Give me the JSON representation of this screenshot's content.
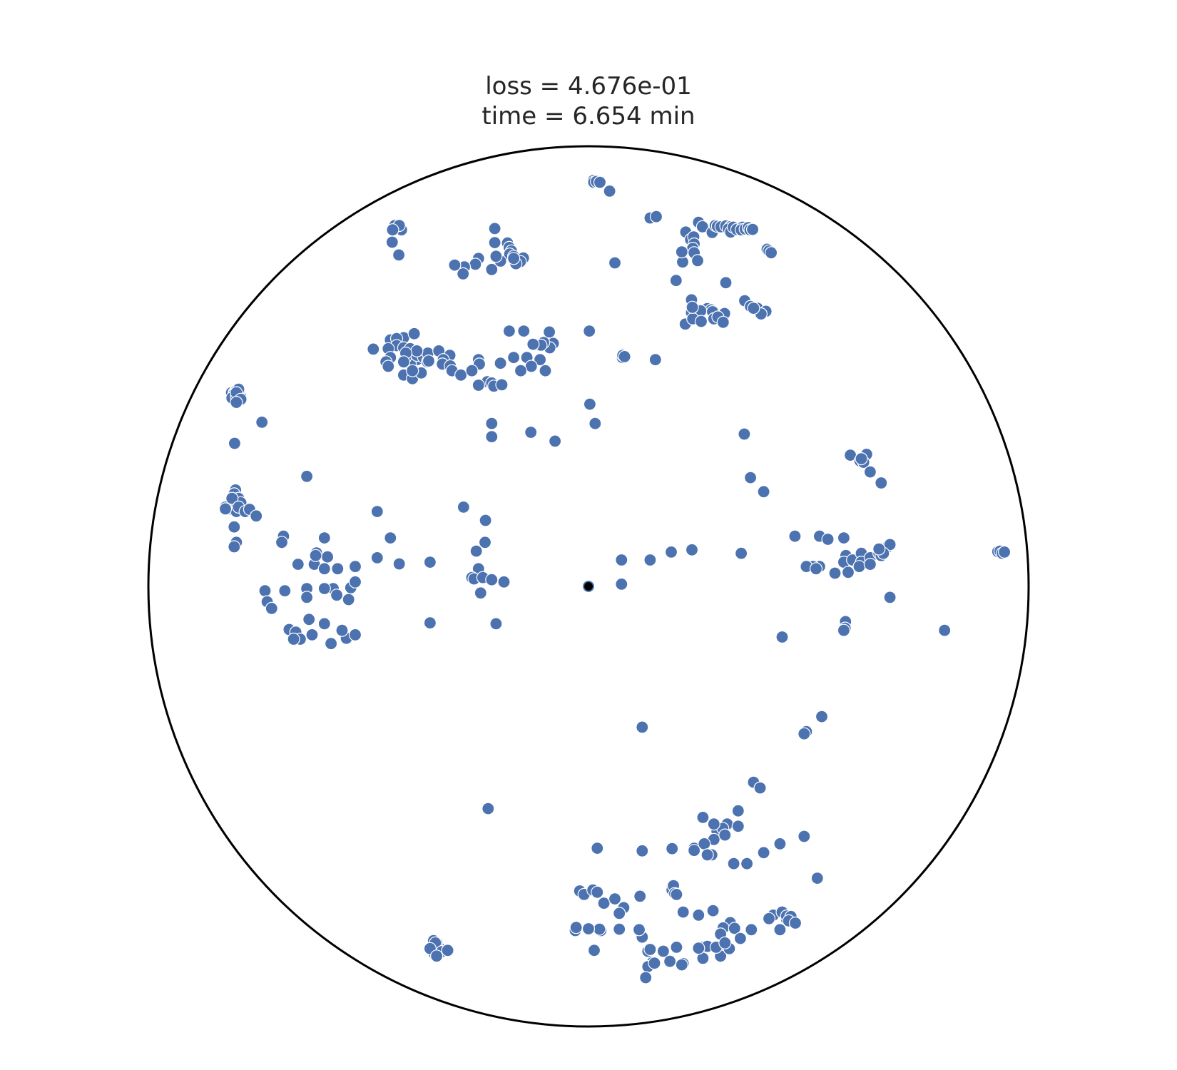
{
  "chart_data": {
    "type": "scatter",
    "title_lines": [
      "loss = 4.676e-01",
      "time = 6.654 min"
    ],
    "xlim": [
      -1,
      1
    ],
    "ylim": [
      -1,
      1
    ],
    "grid": false,
    "boundary": "unit-circle",
    "marker_color": "#4c72b0",
    "marker_edge_color": "#ffffff",
    "origin_color": "#000000",
    "boundary_color": "#000000",
    "origin": [
      0,
      0
    ],
    "points": [
      [
        0.011,
        0.922
      ],
      [
        0.012,
        0.918
      ],
      [
        0.018,
        0.92
      ],
      [
        0.026,
        0.918
      ],
      [
        0.048,
        0.898
      ],
      [
        0.14,
        0.837
      ],
      [
        0.154,
        0.84
      ],
      [
        0.25,
        0.827
      ],
      [
        0.259,
        0.817
      ],
      [
        0.281,
        0.804
      ],
      [
        0.288,
        0.82
      ],
      [
        0.293,
        0.818
      ],
      [
        0.301,
        0.817
      ],
      [
        0.312,
        0.819
      ],
      [
        0.322,
        0.817
      ],
      [
        0.318,
        0.812
      ],
      [
        0.323,
        0.805
      ],
      [
        0.329,
        0.816
      ],
      [
        0.337,
        0.811
      ],
      [
        0.35,
        0.816
      ],
      [
        0.347,
        0.81
      ],
      [
        0.356,
        0.812
      ],
      [
        0.363,
        0.815
      ],
      [
        0.367,
        0.81
      ],
      [
        0.373,
        0.811
      ],
      [
        0.221,
        0.805
      ],
      [
        0.232,
        0.788
      ],
      [
        0.239,
        0.794
      ],
      [
        0.24,
        0.778
      ],
      [
        0.237,
        0.768
      ],
      [
        0.24,
        0.758
      ],
      [
        0.248,
        0.74
      ],
      [
        0.214,
        0.737
      ],
      [
        0.212,
        0.76
      ],
      [
        0.199,
        0.695
      ],
      [
        0.234,
        0.651
      ],
      [
        0.27,
        0.631
      ],
      [
        0.279,
        0.628
      ],
      [
        0.234,
        0.622
      ],
      [
        0.255,
        0.626
      ],
      [
        0.282,
        0.624
      ],
      [
        0.309,
        0.62
      ],
      [
        0.285,
        0.608
      ],
      [
        0.22,
        0.596
      ],
      [
        0.237,
        0.608
      ],
      [
        0.256,
        0.602
      ],
      [
        0.294,
        0.612
      ],
      [
        0.306,
        0.6
      ],
      [
        0.406,
        0.766
      ],
      [
        0.41,
        0.762
      ],
      [
        0.415,
        0.758
      ],
      [
        -0.44,
        0.82
      ],
      [
        -0.43,
        0.815
      ],
      [
        -0.425,
        0.81
      ],
      [
        -0.43,
        0.82
      ],
      [
        -0.445,
        0.81
      ],
      [
        -0.446,
        0.782
      ],
      [
        -0.431,
        0.753
      ],
      [
        -0.213,
        0.813
      ],
      [
        -0.213,
        0.781
      ],
      [
        -0.184,
        0.78
      ],
      [
        -0.18,
        0.77
      ],
      [
        -0.175,
        0.762
      ],
      [
        -0.179,
        0.755
      ],
      [
        -0.17,
        0.75
      ],
      [
        -0.16,
        0.74
      ],
      [
        -0.148,
        0.746
      ],
      [
        -0.155,
        0.738
      ],
      [
        -0.165,
        0.733
      ],
      [
        -0.17,
        0.745
      ],
      [
        -0.2,
        0.739
      ],
      [
        -0.22,
        0.72
      ],
      [
        -0.25,
        0.745
      ],
      [
        -0.257,
        0.732
      ],
      [
        -0.282,
        0.726
      ],
      [
        -0.285,
        0.71
      ],
      [
        -0.304,
        0.73
      ],
      [
        -0.21,
        0.75
      ],
      [
        -0.18,
        0.58
      ],
      [
        -0.147,
        0.58
      ],
      [
        -0.089,
        0.578
      ],
      [
        -0.08,
        0.552
      ],
      [
        -0.088,
        0.542
      ],
      [
        -0.102,
        0.554
      ],
      [
        0.06,
        0.735
      ],
      [
        0.002,
        0.58
      ],
      [
        -0.489,
        0.539
      ],
      [
        -0.45,
        0.56
      ],
      [
        -0.42,
        0.565
      ],
      [
        -0.396,
        0.574
      ],
      [
        -0.436,
        0.563
      ],
      [
        -0.436,
        0.547
      ],
      [
        -0.455,
        0.54
      ],
      [
        -0.42,
        0.542
      ],
      [
        -0.405,
        0.54
      ],
      [
        -0.39,
        0.515
      ],
      [
        -0.405,
        0.505
      ],
      [
        -0.416,
        0.52
      ],
      [
        -0.39,
        0.525
      ],
      [
        -0.375,
        0.521
      ],
      [
        -0.366,
        0.51
      ],
      [
        -0.365,
        0.53
      ],
      [
        -0.363,
        0.512
      ],
      [
        -0.39,
        0.535
      ],
      [
        -0.34,
        0.535
      ],
      [
        -0.315,
        0.525
      ],
      [
        -0.33,
        0.515
      ],
      [
        -0.415,
        0.53
      ],
      [
        -0.42,
        0.51
      ],
      [
        -0.45,
        0.52
      ],
      [
        -0.46,
        0.51
      ],
      [
        -0.455,
        0.5
      ],
      [
        -0.42,
        0.48
      ],
      [
        -0.4,
        0.472
      ],
      [
        -0.38,
        0.485
      ],
      [
        -0.4,
        0.49
      ],
      [
        -0.332,
        0.505
      ],
      [
        -0.314,
        0.501
      ],
      [
        -0.31,
        0.49
      ],
      [
        -0.29,
        0.48
      ],
      [
        -0.25,
        0.515
      ],
      [
        -0.248,
        0.505
      ],
      [
        -0.265,
        0.49
      ],
      [
        -0.23,
        0.465
      ],
      [
        -0.2,
        0.507
      ],
      [
        -0.22,
        0.462
      ],
      [
        -0.215,
        0.455
      ],
      [
        -0.25,
        0.457
      ],
      [
        -0.14,
        0.52
      ],
      [
        -0.17,
        0.52
      ],
      [
        -0.11,
        0.515
      ],
      [
        -0.108,
        0.548
      ],
      [
        -0.126,
        0.55
      ],
      [
        -0.13,
        0.5
      ],
      [
        -0.098,
        0.49
      ],
      [
        -0.154,
        0.49
      ],
      [
        -0.197,
        0.458
      ],
      [
        -0.22,
        0.34
      ],
      [
        -0.22,
        0.37
      ],
      [
        0.077,
        0.52
      ],
      [
        0.078,
        0.525
      ],
      [
        0.082,
        0.522
      ],
      [
        0.152,
        0.515
      ],
      [
        -0.131,
        0.35
      ],
      [
        -0.076,
        0.33
      ],
      [
        0.003,
        0.414
      ],
      [
        0.015,
        0.37
      ],
      [
        0.355,
        0.649
      ],
      [
        0.368,
        0.636
      ],
      [
        0.384,
        0.632
      ],
      [
        0.403,
        0.625
      ],
      [
        0.392,
        0.619
      ],
      [
        0.375,
        0.632
      ],
      [
        0.312,
        0.69
      ],
      [
        0.236,
        0.634
      ],
      [
        0.354,
        0.346
      ],
      [
        0.368,
        0.247
      ],
      [
        0.398,
        0.215
      ],
      [
        0.0,
        0.0
      ],
      [
        -0.811,
        0.44
      ],
      [
        -0.805,
        0.44
      ],
      [
        -0.8,
        0.438
      ],
      [
        -0.8,
        0.445
      ],
      [
        -0.805,
        0.437
      ],
      [
        -0.81,
        0.428
      ],
      [
        -0.8,
        0.43
      ],
      [
        -0.79,
        0.43
      ],
      [
        -0.793,
        0.447
      ],
      [
        -0.795,
        0.448
      ],
      [
        -0.8,
        0.44
      ],
      [
        -0.79,
        0.425
      ],
      [
        -0.8,
        0.418
      ],
      [
        -0.742,
        0.373
      ],
      [
        -0.804,
        0.325
      ],
      [
        -0.802,
        0.219
      ],
      [
        -0.805,
        0.21
      ],
      [
        -0.81,
        0.195
      ],
      [
        -0.795,
        0.2
      ],
      [
        -0.79,
        0.19
      ],
      [
        -0.81,
        0.175
      ],
      [
        -0.8,
        0.17
      ],
      [
        -0.825,
        0.18
      ],
      [
        -0.825,
        0.176
      ],
      [
        -0.81,
        0.2
      ],
      [
        -0.795,
        0.18
      ],
      [
        -0.78,
        0.17
      ],
      [
        -0.77,
        0.175
      ],
      [
        -0.755,
        0.16
      ],
      [
        -0.805,
        0.135
      ],
      [
        -0.8,
        0.1
      ],
      [
        -0.805,
        0.09
      ],
      [
        -0.64,
        0.25
      ],
      [
        -0.6,
        0.11
      ],
      [
        -0.693,
        0.114
      ],
      [
        -0.697,
        0.1
      ],
      [
        -0.618,
        0.076
      ],
      [
        -0.623,
        0.05
      ],
      [
        -0.593,
        0.067
      ],
      [
        -0.66,
        0.05
      ],
      [
        -0.69,
        -0.01
      ],
      [
        -0.64,
        -0.005
      ],
      [
        -0.58,
        -0.005
      ],
      [
        -0.64,
        -0.025
      ],
      [
        -0.6,
        -0.005
      ],
      [
        -0.572,
        -0.02
      ],
      [
        -0.54,
        -0.003
      ],
      [
        -0.57,
        0.04
      ],
      [
        -0.6,
        0.04
      ],
      [
        -0.62,
        0.07
      ],
      [
        -0.53,
        0.045
      ],
      [
        -0.53,
        0.01
      ],
      [
        -0.735,
        -0.01
      ],
      [
        -0.73,
        -0.035
      ],
      [
        -0.72,
        -0.05
      ],
      [
        -0.68,
        -0.098
      ],
      [
        -0.665,
        -0.104
      ],
      [
        -0.655,
        -0.12
      ],
      [
        -0.67,
        -0.12
      ],
      [
        -0.628,
        -0.11
      ],
      [
        -0.585,
        -0.13
      ],
      [
        -0.55,
        -0.118
      ],
      [
        -0.56,
        -0.1
      ],
      [
        -0.53,
        -0.11
      ],
      [
        -0.6,
        -0.085
      ],
      [
        -0.635,
        -0.075
      ],
      [
        -0.545,
        -0.03
      ],
      [
        -0.48,
        0.065
      ],
      [
        -0.48,
        0.17
      ],
      [
        -0.45,
        0.11
      ],
      [
        -0.43,
        0.051
      ],
      [
        -0.36,
        0.055
      ],
      [
        -0.284,
        0.18
      ],
      [
        -0.234,
        0.15
      ],
      [
        -0.235,
        0.1
      ],
      [
        -0.255,
        0.08
      ],
      [
        -0.25,
        0.04
      ],
      [
        -0.265,
        0.02
      ],
      [
        -0.26,
        0.017
      ],
      [
        -0.24,
        0.02
      ],
      [
        -0.22,
        0.015
      ],
      [
        -0.192,
        0.01
      ],
      [
        -0.245,
        -0.015
      ],
      [
        -0.36,
        -0.083
      ],
      [
        -0.21,
        -0.085
      ],
      [
        0.075,
        0.06
      ],
      [
        0.075,
        0.005
      ],
      [
        0.14,
        0.06
      ],
      [
        0.188,
        0.078
      ],
      [
        0.235,
        0.083
      ],
      [
        0.347,
        0.075
      ],
      [
        0.469,
        0.114
      ],
      [
        0.525,
        0.114
      ],
      [
        0.544,
        0.107
      ],
      [
        0.58,
        0.11
      ],
      [
        0.585,
        0.07
      ],
      [
        0.58,
        0.055
      ],
      [
        0.6,
        0.06
      ],
      [
        0.62,
        0.075
      ],
      [
        0.62,
        0.055
      ],
      [
        0.615,
        0.045
      ],
      [
        0.64,
        0.065
      ],
      [
        0.64,
        0.05
      ],
      [
        0.66,
        0.075
      ],
      [
        0.665,
        0.07
      ],
      [
        0.68,
        0.09
      ],
      [
        0.685,
        0.095
      ],
      [
        0.67,
        0.075
      ],
      [
        0.66,
        0.085
      ],
      [
        0.59,
        0.032
      ],
      [
        0.56,
        0.03
      ],
      [
        0.525,
        0.045
      ],
      [
        0.51,
        0.045
      ],
      [
        0.495,
        0.045
      ],
      [
        0.517,
        0.04
      ],
      [
        0.685,
        -0.025
      ],
      [
        0.44,
        -0.115
      ],
      [
        0.584,
        -0.08
      ],
      [
        0.583,
        -0.095
      ],
      [
        0.58,
        -0.1
      ],
      [
        0.632,
        0.3
      ],
      [
        0.595,
        0.298
      ],
      [
        0.617,
        0.285
      ],
      [
        0.625,
        0.282
      ],
      [
        0.62,
        0.29
      ],
      [
        0.665,
        0.235
      ],
      [
        0.64,
        0.26
      ],
      [
        0.93,
        0.079
      ],
      [
        0.935,
        0.08
      ],
      [
        0.94,
        0.075
      ],
      [
        0.945,
        0.078
      ],
      [
        0.809,
        -0.1
      ],
      [
        0.122,
        -0.32
      ],
      [
        0.495,
        -0.33
      ],
      [
        0.49,
        -0.335
      ],
      [
        0.53,
        -0.296
      ],
      [
        -0.228,
        -0.505
      ],
      [
        0.375,
        -0.445
      ],
      [
        0.39,
        -0.458
      ],
      [
        0.34,
        -0.51
      ],
      [
        0.315,
        -0.54
      ],
      [
        0.292,
        -0.556
      ],
      [
        0.34,
        -0.545
      ],
      [
        0.305,
        -0.55
      ],
      [
        0.285,
        -0.54
      ],
      [
        0.26,
        -0.525
      ],
      [
        0.285,
        -0.575
      ],
      [
        0.31,
        -0.565
      ],
      [
        0.24,
        -0.595
      ],
      [
        0.263,
        -0.585
      ],
      [
        0.24,
        -0.6
      ],
      [
        0.19,
        -0.596
      ],
      [
        0.122,
        -0.601
      ],
      [
        0.02,
        -0.595
      ],
      [
        0.36,
        -0.63
      ],
      [
        0.33,
        -0.63
      ],
      [
        0.28,
        -0.61
      ],
      [
        0.27,
        -0.61
      ],
      [
        0.398,
        -0.605
      ],
      [
        0.435,
        -0.585
      ],
      [
        0.49,
        -0.568
      ],
      [
        0.52,
        -0.663
      ],
      [
        -0.02,
        -0.692
      ],
      [
        -0.01,
        -0.7
      ],
      [
        0.01,
        -0.69
      ],
      [
        0.02,
        -0.695
      ],
      [
        0.035,
        -0.72
      ],
      [
        0.06,
        -0.71
      ],
      [
        0.08,
        -0.73
      ],
      [
        0.07,
        -0.743
      ],
      [
        0.117,
        -0.704
      ],
      [
        0.19,
        -0.685
      ],
      [
        0.19,
        -0.69
      ],
      [
        0.193,
        -0.68
      ],
      [
        0.196,
        -0.698
      ],
      [
        0.2,
        -0.7
      ],
      [
        0.25,
        -0.747
      ],
      [
        0.215,
        -0.74
      ],
      [
        0.283,
        -0.737
      ],
      [
        0.322,
        -0.764
      ],
      [
        0.306,
        -0.776
      ],
      [
        0.3,
        -0.79
      ],
      [
        0.332,
        -0.777
      ],
      [
        0.122,
        -0.797
      ],
      [
        0.115,
        -0.78
      ],
      [
        0.07,
        -0.779
      ],
      [
        0.028,
        -0.782
      ],
      [
        0.025,
        -0.779
      ],
      [
        0.0,
        -0.778
      ],
      [
        -0.03,
        -0.782
      ],
      [
        -0.028,
        -0.775
      ],
      [
        0.013,
        -0.827
      ],
      [
        0.135,
        -0.829
      ],
      [
        0.14,
        -0.825
      ],
      [
        0.145,
        -0.855
      ],
      [
        0.135,
        -0.864
      ],
      [
        0.13,
        -0.889
      ],
      [
        0.15,
        -0.856
      ],
      [
        0.17,
        -0.829
      ],
      [
        0.185,
        -0.852
      ],
      [
        0.2,
        -0.82
      ],
      [
        0.215,
        -0.857
      ],
      [
        0.212,
        -0.86
      ],
      [
        0.26,
        -0.82
      ],
      [
        0.27,
        -0.818
      ],
      [
        0.26,
        -0.845
      ],
      [
        0.3,
        -0.835
      ],
      [
        0.3,
        -0.84
      ],
      [
        0.29,
        -0.82
      ],
      [
        0.25,
        -0.822
      ],
      [
        0.32,
        -0.823
      ],
      [
        0.31,
        -0.81
      ],
      [
        0.42,
        -0.747
      ],
      [
        0.41,
        -0.755
      ],
      [
        0.44,
        -0.74
      ],
      [
        0.45,
        -0.756
      ],
      [
        0.45,
        -0.749
      ],
      [
        0.46,
        -0.75
      ],
      [
        0.455,
        -0.76
      ],
      [
        0.435,
        -0.78
      ],
      [
        0.47,
        -0.765
      ],
      [
        0.37,
        -0.78
      ],
      [
        0.345,
        -0.8
      ],
      [
        -0.352,
        -0.805
      ],
      [
        -0.34,
        -0.82
      ],
      [
        -0.35,
        -0.835
      ],
      [
        -0.345,
        -0.81
      ],
      [
        -0.348,
        -0.81
      ],
      [
        -0.333,
        -0.83
      ],
      [
        -0.32,
        -0.827
      ],
      [
        -0.36,
        -0.823
      ],
      [
        -0.345,
        -0.84
      ]
    ]
  }
}
